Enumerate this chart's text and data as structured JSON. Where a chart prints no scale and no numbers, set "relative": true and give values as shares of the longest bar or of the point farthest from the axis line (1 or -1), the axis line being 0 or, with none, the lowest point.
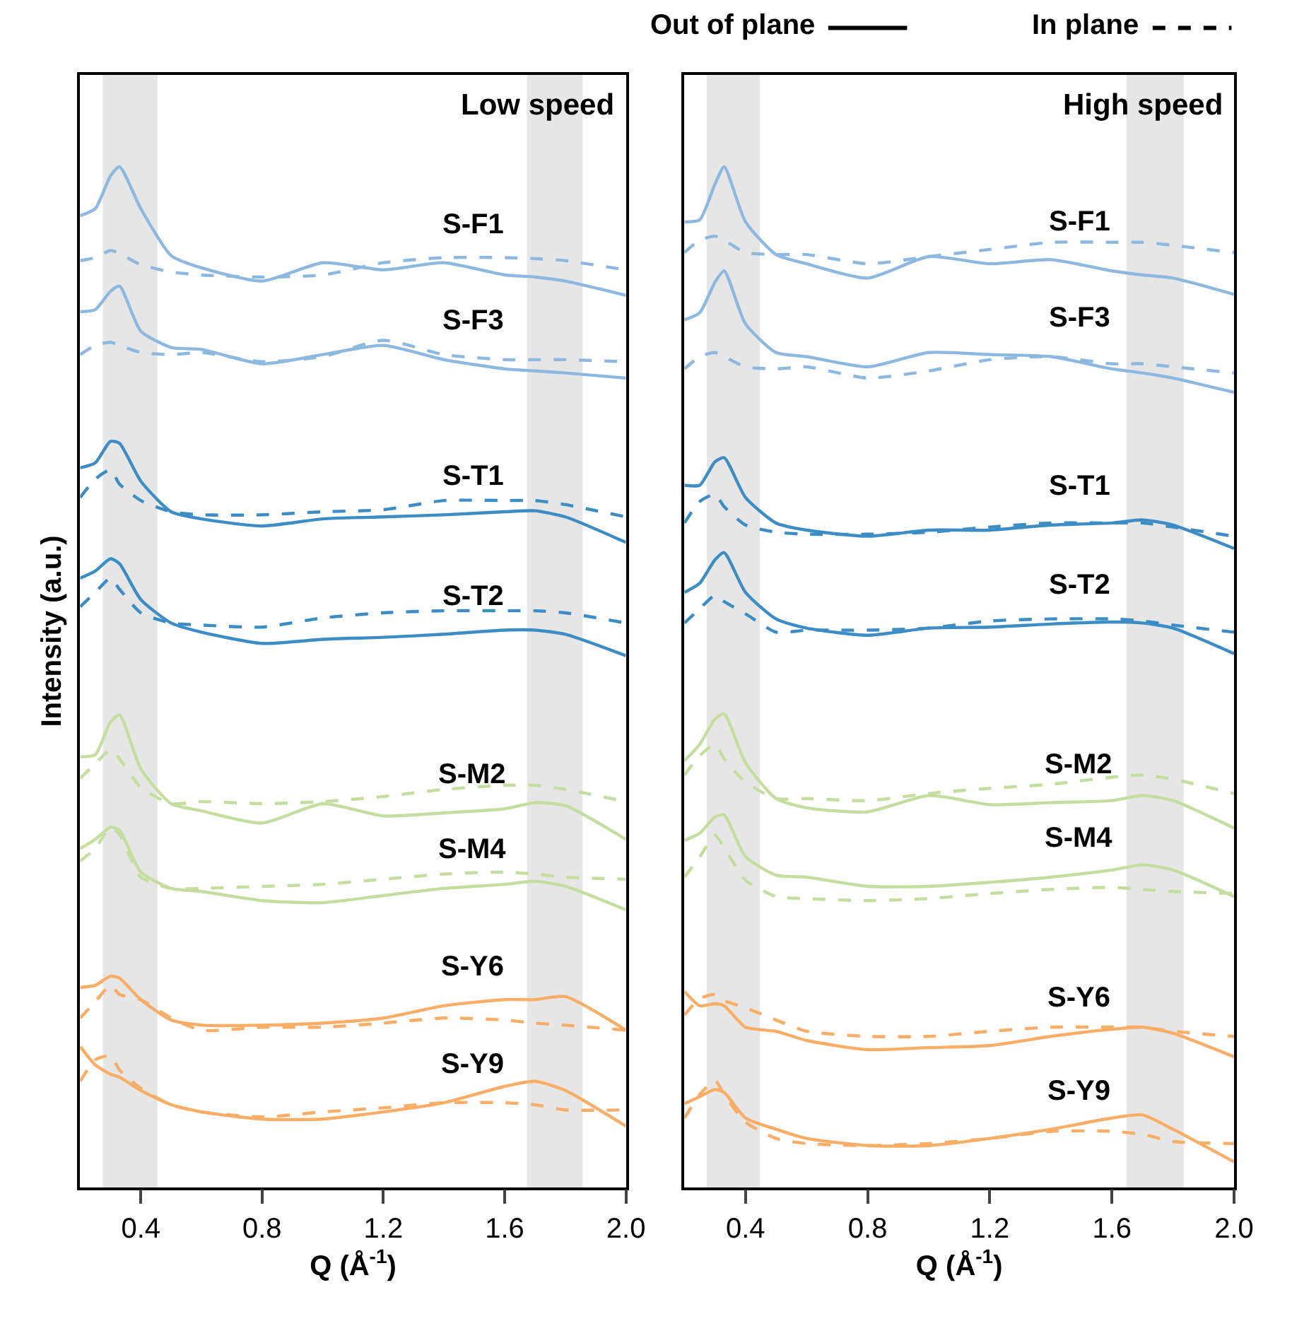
{
  "chart_data": [
    {
      "type": "line",
      "title": "Low speed",
      "xlabel": "Q (Å$^{-1}$)",
      "ylabel": "Intensity (a.u.)",
      "relative": true,
      "x": [
        0.2,
        0.25,
        0.3,
        0.33,
        0.4,
        0.5,
        0.6,
        0.8,
        1.0,
        1.2,
        1.4,
        1.6,
        1.7,
        1.8,
        2.0
      ],
      "xlim": [
        0.2,
        2.0
      ],
      "xticks": [
        0.4,
        0.8,
        1.2,
        1.6,
        {
          "value": 2.0,
          "label": "2.0"
        }
      ],
      "bands": [
        {
          "axis": "x",
          "from": 0.275,
          "to": 0.455,
          "color": "#e6e6e6"
        },
        {
          "axis": "x",
          "from": 1.674,
          "to": 1.857,
          "color": "#e6e6e6"
        }
      ],
      "series": [
        {
          "name": "S-F1",
          "color": "#8db8e0",
          "line_style": "solid",
          "values": [
            0.952,
            0.959,
            0.991,
            1,
            0.959,
            0.913,
            0.901,
            0.888,
            0.906,
            0.899,
            0.906,
            0.894,
            0.892,
            0.888,
            0.874
          ]
        },
        {
          "color": "#8db8e0",
          "line_style": "dashed",
          "values": [
            0.908,
            0.911,
            0.918,
            0.915,
            0.904,
            0.897,
            0.894,
            0.892,
            0.894,
            0.906,
            0.911,
            0.911,
            0.91,
            0.908,
            0.899
          ]
        },
        {
          "name": "S-F3",
          "color": "#8db8e0",
          "line_style": "solid",
          "values": [
            0.858,
            0.86,
            0.878,
            0.883,
            0.839,
            0.823,
            0.821,
            0.807,
            0.816,
            0.825,
            0.811,
            0.802,
            0.8,
            0.798,
            0.793
          ]
        },
        {
          "color": "#8db8e0",
          "line_style": "dashed",
          "values": [
            0.816,
            0.825,
            0.828,
            0.825,
            0.818,
            0.816,
            0.818,
            0.809,
            0.814,
            0.83,
            0.816,
            0.811,
            0.811,
            0.811,
            0.809
          ]
        },
        {
          "name": "S-T1",
          "color": "#3c8dc5",
          "line_style": "solid",
          "values": [
            0.705,
            0.71,
            0.731,
            0.729,
            0.692,
            0.662,
            0.655,
            0.648,
            0.655,
            0.657,
            0.659,
            0.662,
            0.663,
            0.657,
            0.632
          ]
        },
        {
          "color": "#3c8dc5",
          "line_style": "dashed",
          "values": [
            0.676,
            0.694,
            0.703,
            0.689,
            0.673,
            0.662,
            0.659,
            0.659,
            0.662,
            0.664,
            0.673,
            0.673,
            0.673,
            0.669,
            0.657
          ]
        },
        {
          "name": "S-T2",
          "color": "#3c8dc5",
          "line_style": "solid",
          "values": [
            0.597,
            0.604,
            0.616,
            0.611,
            0.576,
            0.553,
            0.544,
            0.533,
            0.537,
            0.539,
            0.542,
            0.546,
            0.546,
            0.542,
            0.521
          ]
        },
        {
          "color": "#3c8dc5",
          "line_style": "dashed",
          "values": [
            0.569,
            0.583,
            0.597,
            0.586,
            0.563,
            0.553,
            0.551,
            0.549,
            0.558,
            0.563,
            0.565,
            0.565,
            0.565,
            0.563,
            0.553
          ]
        },
        {
          "name": "S-M2",
          "color": "#c5dea0",
          "line_style": "solid",
          "values": [
            0.422,
            0.424,
            0.456,
            0.463,
            0.41,
            0.376,
            0.369,
            0.357,
            0.376,
            0.364,
            0.367,
            0.371,
            0.377,
            0.374,
            0.341
          ]
        },
        {
          "color": "#c5dea0",
          "line_style": "dashed",
          "values": [
            0.401,
            0.415,
            0.429,
            0.42,
            0.392,
            0.376,
            0.378,
            0.376,
            0.378,
            0.383,
            0.39,
            0.394,
            0.394,
            0.39,
            0.378
          ]
        },
        {
          "name": "S-M4",
          "color": "#c5dea0",
          "line_style": "solid",
          "values": [
            0.332,
            0.341,
            0.353,
            0.35,
            0.309,
            0.293,
            0.29,
            0.281,
            0.279,
            0.286,
            0.293,
            0.297,
            0.3,
            0.295,
            0.272
          ]
        },
        {
          "color": "#c5dea0",
          "line_style": "dashed",
          "values": [
            0.32,
            0.332,
            0.353,
            0.346,
            0.304,
            0.293,
            0.293,
            0.295,
            0.297,
            0.302,
            0.307,
            0.309,
            0.307,
            0.304,
            0.302
          ]
        },
        {
          "name": "S-Y6",
          "color": "#f9ad65",
          "line_style": "solid",
          "values": [
            0.196,
            0.198,
            0.207,
            0.205,
            0.184,
            0.164,
            0.159,
            0.159,
            0.161,
            0.166,
            0.178,
            0.184,
            0.184,
            0.187,
            0.154
          ]
        },
        {
          "color": "#f9ad65",
          "line_style": "dashed",
          "values": [
            0.166,
            0.182,
            0.198,
            0.189,
            0.184,
            0.166,
            0.154,
            0.157,
            0.157,
            0.161,
            0.166,
            0.164,
            0.161,
            0.159,
            0.154
          ]
        },
        {
          "name": "S-Y9",
          "color": "#f9ad65",
          "line_style": "solid",
          "values": [
            0.138,
            0.12,
            0.111,
            0.108,
            0.095,
            0.081,
            0.074,
            0.067,
            0.067,
            0.074,
            0.083,
            0.099,
            0.104,
            0.095,
            0.06
          ]
        },
        {
          "color": "#f9ad65",
          "line_style": "dashed",
          "values": [
            0.104,
            0.125,
            0.129,
            0.115,
            0.097,
            0.081,
            0.074,
            0.069,
            0.074,
            0.078,
            0.083,
            0.083,
            0.081,
            0.076,
            0.076
          ]
        }
      ]
    },
    {
      "type": "line",
      "title": "High speed",
      "xlabel": "Q (Å$^{-1}$)",
      "relative": true,
      "annotations": [
        "Out of plane",
        "In plane"
      ],
      "x": [
        0.2,
        0.25,
        0.3,
        0.33,
        0.4,
        0.5,
        0.6,
        0.8,
        1.0,
        1.2,
        1.4,
        1.6,
        1.7,
        1.8,
        2.0
      ],
      "xlim": [
        0.2,
        2.0
      ],
      "xticks": [
        0.4,
        0.8,
        1.2,
        1.6,
        {
          "value": 2.0,
          "label": "2.0"
        }
      ],
      "bands": [
        {
          "axis": "x",
          "from": 0.273,
          "to": 0.447,
          "color": "#e6e6e6"
        },
        {
          "axis": "x",
          "from": 1.648,
          "to": 1.835,
          "color": "#e6e6e6"
        }
      ],
      "series": [
        {
          "name": "S-F1",
          "color": "#8db8e0",
          "line_style": "solid",
          "values": [
            0.946,
            0.948,
            0.983,
            1,
            0.946,
            0.914,
            0.905,
            0.891,
            0.912,
            0.905,
            0.909,
            0.898,
            0.894,
            0.891,
            0.875
          ]
        },
        {
          "color": "#8db8e0",
          "line_style": "dashed",
          "values": [
            0.916,
            0.928,
            0.932,
            0.928,
            0.916,
            0.914,
            0.914,
            0.905,
            0.912,
            0.919,
            0.926,
            0.926,
            0.926,
            0.923,
            0.916
          ]
        },
        {
          "name": "S-F3",
          "color": "#8db8e0",
          "line_style": "solid",
          "values": [
            0.85,
            0.857,
            0.887,
            0.898,
            0.846,
            0.818,
            0.814,
            0.804,
            0.818,
            0.816,
            0.814,
            0.802,
            0.798,
            0.793,
            0.779
          ]
        },
        {
          "color": "#8db8e0",
          "line_style": "dashed",
          "values": [
            0.802,
            0.814,
            0.818,
            0.814,
            0.804,
            0.802,
            0.804,
            0.793,
            0.8,
            0.811,
            0.814,
            0.807,
            0.807,
            0.804,
            0.798
          ]
        },
        {
          "name": "S-T1",
          "color": "#3c8dc5",
          "line_style": "solid",
          "values": [
            0.688,
            0.688,
            0.711,
            0.715,
            0.676,
            0.651,
            0.644,
            0.638,
            0.644,
            0.644,
            0.649,
            0.651,
            0.654,
            0.649,
            0.626
          ]
        },
        {
          "color": "#3c8dc5",
          "line_style": "dashed",
          "values": [
            0.651,
            0.672,
            0.679,
            0.667,
            0.649,
            0.642,
            0.64,
            0.64,
            0.642,
            0.647,
            0.651,
            0.651,
            0.651,
            0.647,
            0.638
          ]
        },
        {
          "name": "S-T2",
          "color": "#3c8dc5",
          "line_style": "solid",
          "values": [
            0.583,
            0.592,
            0.615,
            0.622,
            0.583,
            0.557,
            0.548,
            0.541,
            0.548,
            0.549,
            0.552,
            0.554,
            0.553,
            0.548,
            0.523
          ]
        },
        {
          "color": "#3c8dc5",
          "line_style": "dashed",
          "values": [
            0.553,
            0.567,
            0.58,
            0.574,
            0.562,
            0.544,
            0.546,
            0.546,
            0.548,
            0.555,
            0.557,
            0.557,
            0.555,
            0.551,
            0.544
          ]
        },
        {
          "name": "S-M2",
          "color": "#c5dea0",
          "line_style": "solid",
          "values": [
            0.418,
            0.434,
            0.459,
            0.464,
            0.416,
            0.381,
            0.372,
            0.368,
            0.384,
            0.375,
            0.377,
            0.379,
            0.384,
            0.379,
            0.352
          ]
        },
        {
          "color": "#c5dea0",
          "line_style": "dashed",
          "values": [
            0.404,
            0.423,
            0.434,
            0.42,
            0.397,
            0.381,
            0.381,
            0.379,
            0.386,
            0.391,
            0.395,
            0.402,
            0.404,
            0.4,
            0.386
          ]
        },
        {
          "name": "S-M4",
          "color": "#c5dea0",
          "line_style": "solid",
          "values": [
            0.34,
            0.347,
            0.363,
            0.365,
            0.324,
            0.306,
            0.304,
            0.295,
            0.295,
            0.299,
            0.304,
            0.311,
            0.316,
            0.311,
            0.285
          ]
        },
        {
          "color": "#c5dea0",
          "line_style": "dashed",
          "values": [
            0.304,
            0.324,
            0.345,
            0.333,
            0.301,
            0.285,
            0.283,
            0.281,
            0.283,
            0.288,
            0.292,
            0.294,
            0.292,
            0.29,
            0.288
          ]
        },
        {
          "name": "S-Y6",
          "color": "#f9ad65",
          "line_style": "solid",
          "values": [
            0.192,
            0.178,
            0.18,
            0.178,
            0.157,
            0.153,
            0.144,
            0.135,
            0.137,
            0.139,
            0.148,
            0.155,
            0.157,
            0.151,
            0.128
          ]
        },
        {
          "color": "#f9ad65",
          "line_style": "dashed",
          "values": [
            0.169,
            0.185,
            0.189,
            0.183,
            0.176,
            0.164,
            0.153,
            0.148,
            0.148,
            0.153,
            0.157,
            0.157,
            0.157,
            0.153,
            0.148
          ]
        },
        {
          "name": "S-Y9",
          "color": "#f9ad65",
          "line_style": "solid",
          "values": [
            0.082,
            0.089,
            0.096,
            0.093,
            0.068,
            0.057,
            0.048,
            0.041,
            0.041,
            0.048,
            0.057,
            0.068,
            0.071,
            0.057,
            0.025
          ]
        },
        {
          "color": "#f9ad65",
          "line_style": "dashed",
          "values": [
            0.068,
            0.091,
            0.105,
            0.091,
            0.064,
            0.048,
            0.043,
            0.041,
            0.043,
            0.048,
            0.055,
            0.055,
            0.052,
            0.045,
            0.043
          ]
        }
      ]
    }
  ]
}
